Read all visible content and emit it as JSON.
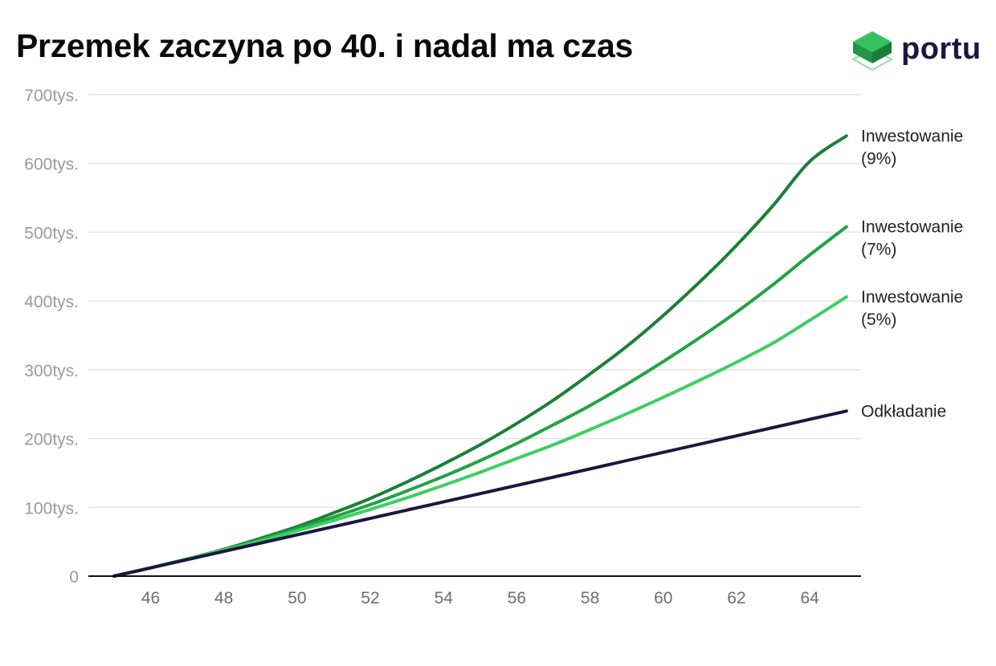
{
  "title": "Przemek zaczyna po 40. i nadal ma czas",
  "logo": {
    "text": "portu",
    "icon": "green-stacked-cube-icon"
  },
  "colors": {
    "background": "#ffffff",
    "grid": "#e3e3e3",
    "axis": "#111111",
    "logo_green": "#2dbd5a",
    "logo_text": "#1d1640"
  },
  "chart_data": {
    "type": "line",
    "title": "Przemek zaczyna po 40. i nadal ma czas",
    "xlabel": "",
    "ylabel": "",
    "xlim": [
      44.3,
      65.4
    ],
    "ylim": [
      0,
      700000
    ],
    "x_ticks": [
      46,
      48,
      50,
      52,
      54,
      56,
      58,
      60,
      62,
      64
    ],
    "x_tick_labels": [
      "46",
      "48",
      "50",
      "52",
      "54",
      "56",
      "58",
      "60",
      "62",
      "64"
    ],
    "y_ticks": [
      0,
      100000,
      200000,
      300000,
      400000,
      500000,
      600000,
      700000
    ],
    "y_tick_labels": [
      "0",
      "100tys.",
      "200tys.",
      "300tys.",
      "400tys.",
      "500tys.",
      "600tys.",
      "700tys."
    ],
    "grid": "horizontal",
    "legend": "none (series labels at right end of lines)",
    "series": [
      {
        "name": "Inwestowanie (9%)",
        "label_lines": [
          "Inwestowanie",
          "(9%)"
        ],
        "color": "#1a7f37",
        "x": [
          45,
          46,
          47,
          48,
          49,
          50,
          51,
          52,
          53,
          54,
          55,
          56,
          57,
          58,
          59,
          60,
          61,
          62,
          63,
          64,
          65
        ],
        "y": [
          0,
          12000,
          25000,
          39000,
          55000,
          72000,
          92000,
          113000,
          137000,
          163000,
          191000,
          222000,
          256000,
          294000,
          334000,
          379000,
          428000,
          481000,
          539000,
          603000,
          640000
        ]
      },
      {
        "name": "Inwestowanie (7%)",
        "label_lines": [
          "Inwestowanie",
          "(7%)"
        ],
        "color": "#20a344",
        "x": [
          45,
          46,
          47,
          48,
          49,
          50,
          51,
          52,
          53,
          54,
          55,
          56,
          57,
          58,
          59,
          60,
          61,
          62,
          63,
          64,
          65
        ],
        "y": [
          0,
          12000,
          25000,
          38000,
          53000,
          69000,
          86000,
          104000,
          124000,
          145000,
          168000,
          193000,
          220000,
          248000,
          279000,
          312000,
          347000,
          384000,
          424000,
          467000,
          508000
        ]
      },
      {
        "name": "Inwestowanie (5%)",
        "label_lines": [
          "Inwestowanie",
          "(5%)"
        ],
        "color": "#3ccf62",
        "x": [
          45,
          46,
          47,
          48,
          49,
          50,
          51,
          52,
          53,
          54,
          55,
          56,
          57,
          58,
          59,
          60,
          61,
          62,
          63,
          64,
          65
        ],
        "y": [
          0,
          12000,
          25000,
          38000,
          51000,
          66000,
          81000,
          97000,
          114000,
          132000,
          151000,
          171000,
          191000,
          213000,
          236000,
          260000,
          285000,
          311000,
          339000,
          372000,
          406000
        ]
      },
      {
        "name": "Odkładanie",
        "label_lines": [
          "Odkładanie"
        ],
        "color": "#1d1640",
        "x": [
          45,
          65
        ],
        "y": [
          0,
          240000
        ]
      }
    ]
  }
}
